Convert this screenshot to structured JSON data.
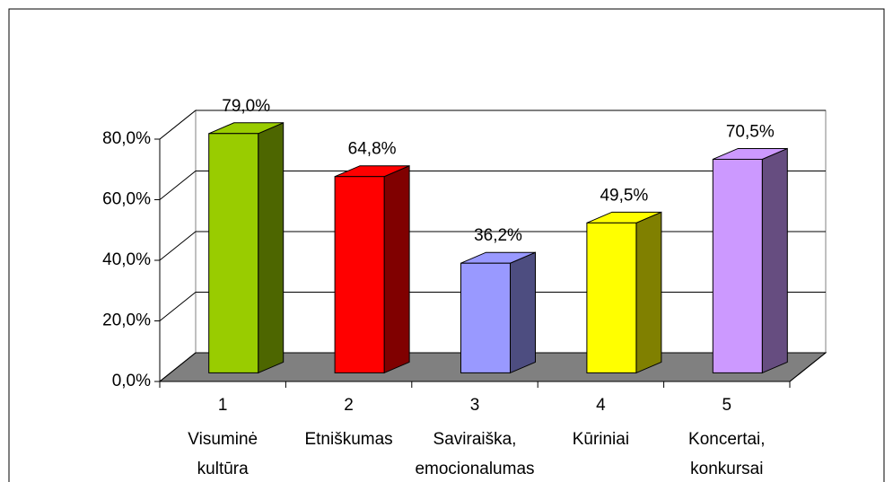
{
  "chart_data": {
    "type": "bar3d",
    "categories": [
      [
        "1",
        "Visuminė",
        "kultūra"
      ],
      [
        "2",
        "Etniškumas"
      ],
      [
        "3",
        "Saviraiška,",
        "emocionalumas"
      ],
      [
        "4",
        "Kūriniai"
      ],
      [
        "5",
        "Koncertai,",
        "konkursai"
      ]
    ],
    "values": [
      79.0,
      64.8,
      36.2,
      49.5,
      70.5
    ],
    "value_labels": [
      "79,0%",
      "64,8%",
      "36,2%",
      "49,5%",
      "70,5%"
    ],
    "colors": [
      "#99cc00",
      "#ff0000",
      "#9999ff",
      "#ffff00",
      "#cc99ff"
    ],
    "ylim": [
      0,
      80
    ],
    "yticks": [
      {
        "value": 0,
        "label": "0,0%"
      },
      {
        "value": 20,
        "label": "20,0%"
      },
      {
        "value": 40,
        "label": "40,0%"
      },
      {
        "value": 60,
        "label": "60,0%"
      },
      {
        "value": 80,
        "label": "80,0%"
      }
    ],
    "grid": true
  }
}
